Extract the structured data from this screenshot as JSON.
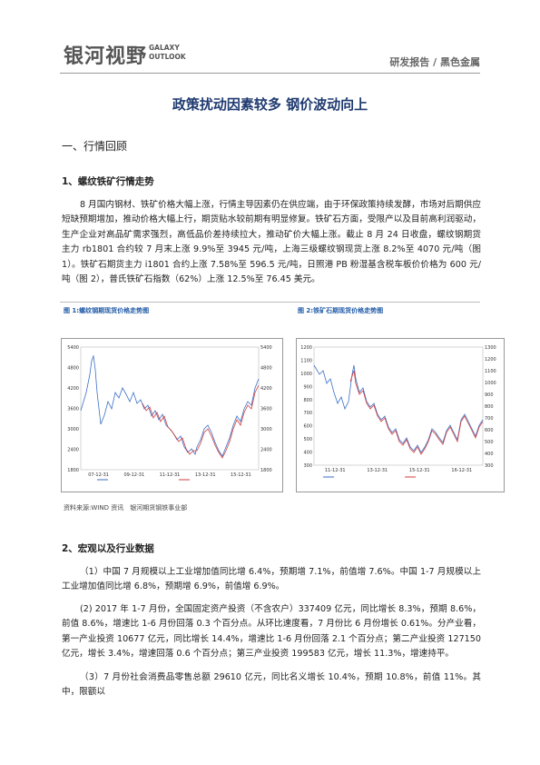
{
  "header": {
    "logo": "银河视野",
    "logo_en_1": "GALAXY",
    "logo_en_2": "OUTLOOK",
    "category": "研发报告 / 黑色金属"
  },
  "title": "政策扰动因素较多 钢价波动向上",
  "section1": {
    "heading": "一、行情回顾",
    "subheading": "1、螺纹铁矿行情走势",
    "paragraph": "8 月国内钢材、铁矿价格大幅上涨，行情主导因素仍在供应端，由于环保政策持续发酵，市场对后期供应短缺预期增加，推动价格大幅上行，期货贴水较前期有明显修复。铁矿石方面，受限产以及目前高利润驱动，生产企业对高品矿需求强烈，高低品价差持续拉大，推动矿价大幅上涨。截止 8 月 24 日收盘，螺纹钢期货主力 rb1801 合约较 7 月末上涨 9.9%至 3945 元/吨，上海三级螺纹钢现货上涨 8.2%至 4070 元/吨（图 1）。铁矿石期货主力 i1801 合约上涨 7.58%至 596.5 元/吨，日照港 PB 粉湿基含税车板价价格为 600 元/吨（图 2），普氏铁矿石指数（62%）上涨 12.5%至 76.45 美元。"
  },
  "figures": [
    {
      "caption": "图 1:螺纹钢期现货价格走势图",
      "left_ticks": [
        "5400",
        "4800",
        "4200",
        "3600",
        "3000",
        "2400",
        "1800"
      ],
      "right_ticks": [
        "5400",
        "4800",
        "4200",
        "3600",
        "3000",
        "2400",
        "1800"
      ],
      "x_labels": [
        "07-12-31",
        "09-12-31",
        "11-12-31",
        "13-12-31",
        "15-12-31"
      ]
    },
    {
      "caption": "图 2:铁矿石期现货价格走势图",
      "left_ticks": [
        "1200",
        "1100",
        "1000",
        "900",
        "800",
        "700",
        "600",
        "500",
        "400",
        "300"
      ],
      "right_ticks": [
        "1300",
        "1200",
        "1100",
        "1000",
        "900",
        "800",
        "700",
        "600",
        "500",
        "400",
        "300"
      ],
      "x_labels": [
        "11-12-31",
        "13-12-31",
        "15-12-31",
        "16-12-31"
      ]
    }
  ],
  "source": "资料来源:WIND 资讯　银河期货钢铁事业部",
  "section2": {
    "heading": "2、宏观以及行业数据",
    "paragraphs": [
      "（1）中国 7 月规模以上工业增加值同比增 6.4%，预期增 7.1%，前值增 7.6%。中国 1-7 月规模以上工业增加值同比增 6.8%，预期增 6.9%，前值增 6.9%。",
      "(2) 2017 年 1-7 月份，全国固定资产投资（不含农户）337409 亿元，同比增长 8.3%，预期 8.6%，前值 8.6%，增速比 1-6 月份回落 0.3 个百分点。从环比速度看，7 月份比 6 月份增长 0.61%。分产业看，第一产业投资 10677 亿元，同比增长 14.4%，增速比 1-6 月份回落 2.1 个百分点；第二产业投资 127150 亿元，增长 3.4%，增速回落 0.6 个百分点；第三产业投资 199583 亿元，增长 11.3%，增速持平。",
      "（3）7 月份社会消费品零售总额 29610 亿元，同比名义增长 10.4%，预期 10.8%，前值 11%。其中，限额以"
    ]
  }
}
